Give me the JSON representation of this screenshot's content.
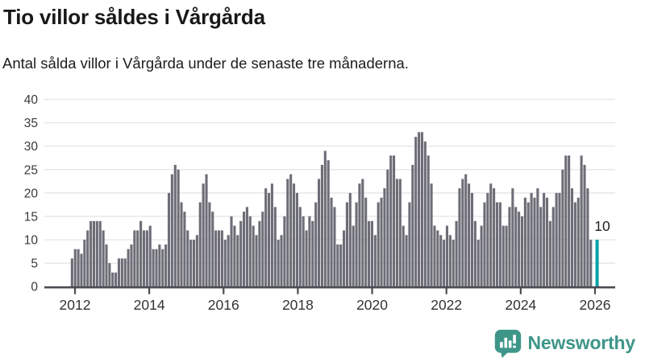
{
  "header": {
    "title": "Tio villor såldes i Vårgårda",
    "subtitle": "Antal sålda villor i Vårgårda under de senaste tre månaderna."
  },
  "chart_data": {
    "type": "bar",
    "title": "Tio villor såldes i Vårgårda",
    "subtitle": "Antal sålda villor i Vårgårda under de senaste tre månaderna.",
    "x_start": "2012-01",
    "x_end": "2026-01",
    "x_tick_labels": [
      "2012",
      "2014",
      "2016",
      "2018",
      "2020",
      "2022",
      "2024",
      "2026"
    ],
    "y_tick_labels": [
      "0",
      "5",
      "10",
      "15",
      "20",
      "25",
      "30",
      "35",
      "40"
    ],
    "ylim": [
      0,
      40
    ],
    "grid": "horizontal",
    "bar_color": "#6D6D77",
    "highlight_color": "#00A3A6",
    "axis_color": "#4B4B52",
    "values": [
      6,
      8,
      8,
      7,
      10,
      12,
      14,
      14,
      14,
      14,
      12,
      9,
      5,
      3,
      3,
      6,
      6,
      6,
      8,
      9,
      12,
      12,
      14,
      12,
      12,
      13,
      8,
      8,
      9,
      8,
      9,
      20,
      24,
      26,
      25,
      18,
      16,
      12,
      10,
      10,
      11,
      18,
      22,
      24,
      18,
      16,
      12,
      12,
      12,
      10,
      11,
      15,
      13,
      11,
      14,
      16,
      17,
      15,
      13,
      11,
      14,
      16,
      21,
      20,
      22,
      17,
      10,
      11,
      15,
      23,
      24,
      22,
      20,
      17,
      15,
      12,
      15,
      14,
      18,
      23,
      26,
      29,
      27,
      19,
      17,
      9,
      9,
      12,
      18,
      20,
      13,
      18,
      22,
      23,
      19,
      14,
      14,
      11,
      18,
      19,
      21,
      25,
      28,
      28,
      23,
      23,
      13,
      11,
      18,
      26,
      32,
      33,
      33,
      31,
      28,
      22,
      13,
      12,
      11,
      10,
      13,
      11,
      10,
      14,
      21,
      23,
      24,
      22,
      20,
      14,
      10,
      13,
      18,
      20,
      22,
      21,
      18,
      18,
      13,
      13,
      17,
      21,
      17,
      16,
      15,
      19,
      18,
      20,
      19,
      21,
      17,
      20,
      19,
      14,
      17,
      20,
      20,
      25,
      28,
      28,
      21,
      18,
      19,
      28,
      26,
      21,
      10,
      0,
      10
    ],
    "highlight_index": 168,
    "highlight_label": "10"
  },
  "footer": {
    "brand": "Newsworthy"
  }
}
